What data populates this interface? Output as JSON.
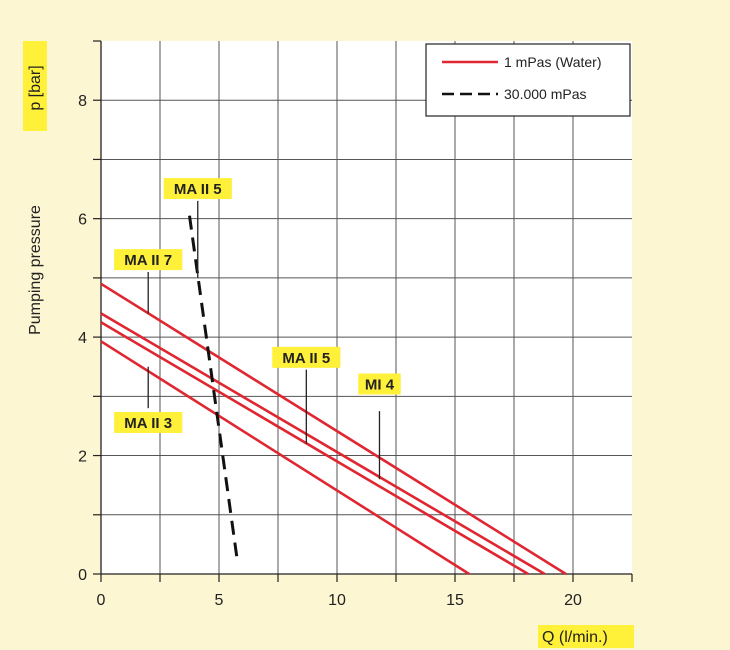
{
  "chart_data": {
    "type": "line",
    "title": "",
    "xlabel": "Q (l/min.)",
    "ylabel_text": "Pumping pressure",
    "ylabel_unit": "p [bar]",
    "xlim": [
      0,
      22.5
    ],
    "ylim": [
      0,
      9
    ],
    "x_ticks": [
      0,
      5,
      10,
      15,
      20
    ],
    "y_ticks": [
      0,
      2,
      4,
      6,
      8
    ],
    "grid": true,
    "legend_position": "top-right",
    "legend": [
      {
        "label": "1 mPas (Water)",
        "style": "solid",
        "color": "#e02630"
      },
      {
        "label": "30.000 mPas",
        "style": "dashed",
        "color": "#111111"
      }
    ],
    "series": [
      {
        "style": "solid",
        "color": "#e02630",
        "points": [
          [
            0,
            4.9
          ],
          [
            19.7,
            0
          ]
        ]
      },
      {
        "style": "solid",
        "color": "#e02630",
        "points": [
          [
            0,
            4.4
          ],
          [
            18.8,
            0
          ]
        ]
      },
      {
        "style": "solid",
        "color": "#e02630",
        "points": [
          [
            0,
            4.25
          ],
          [
            18.1,
            0
          ]
        ]
      },
      {
        "style": "solid",
        "color": "#e02630",
        "points": [
          [
            0,
            3.93
          ],
          [
            15.6,
            0
          ]
        ]
      },
      {
        "style": "dashed",
        "color": "#111111",
        "points": [
          [
            3.75,
            6.05
          ],
          [
            5.75,
            0.3
          ]
        ]
      }
    ],
    "annotations": [
      {
        "text": "MA II 7",
        "x": 2.0,
        "y": 5.3,
        "line_from": [
          2.0,
          5.1
        ],
        "line_to": [
          2.0,
          4.4
        ]
      },
      {
        "text": "MA II 5",
        "x": 4.1,
        "y": 6.5,
        "line_from": [
          4.1,
          6.3
        ],
        "line_to": [
          4.1,
          5.0
        ]
      },
      {
        "text": "MA II 5",
        "x": 8.7,
        "y": 3.65,
        "line_from": [
          8.7,
          3.45
        ],
        "line_to": [
          8.7,
          2.2
        ]
      },
      {
        "text": "MI 4",
        "x": 11.8,
        "y": 3.2,
        "line_from": [
          11.8,
          2.75
        ],
        "line_to": [
          11.8,
          1.6
        ]
      },
      {
        "text": "MA II 3",
        "x": 2.0,
        "y": 2.55,
        "line_from": [
          2.0,
          2.8
        ],
        "line_to": [
          2.0,
          3.5
        ]
      }
    ],
    "colors": {
      "background": "#fdf6d2",
      "label_highlight": "#fff03a",
      "grid": "#555555"
    }
  }
}
